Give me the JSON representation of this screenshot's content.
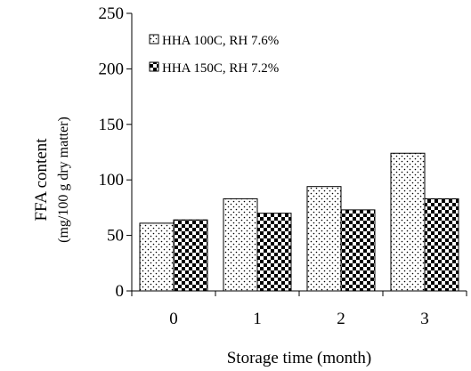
{
  "chart_data": {
    "type": "bar",
    "categories": [
      "0",
      "1",
      "2",
      "3"
    ],
    "xlabel": "Storage time (month)",
    "ylabel": "FFA content",
    "ylabel_sub": "(mg/100 g dry matter)",
    "ylim": [
      0,
      250
    ],
    "yticks": [
      0,
      50,
      100,
      150,
      200,
      250
    ],
    "grid": false,
    "legend_position": "top-left",
    "series": [
      {
        "name": "HHA 100C, RH 7.6%",
        "values": [
          61,
          83,
          94,
          124
        ],
        "pattern": "dots"
      },
      {
        "name": "HHA 150C, RH 7.2%",
        "values": [
          64,
          70,
          73,
          83
        ],
        "pattern": "checker"
      }
    ]
  }
}
